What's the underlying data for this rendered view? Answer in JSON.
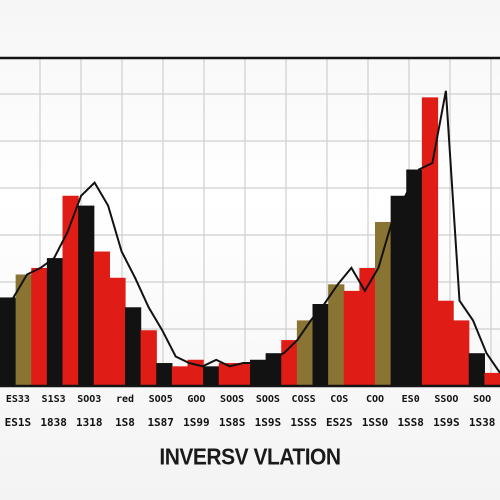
{
  "colors": {
    "red": "#e01c16",
    "black": "#121212",
    "olive": "#8a7433",
    "grid": "#cfcfcf",
    "frame": "#141414"
  },
  "chart_data": {
    "type": "bar",
    "title": "INVERSV VLATION",
    "xlabel": "",
    "ylabel": "",
    "ylim": [
      0,
      100
    ],
    "grid": true,
    "legend": "none",
    "tick_labels_row1": [
      "ES33",
      "S1S3",
      "SOO3",
      "red",
      "SOO5",
      "GOO",
      "SOOS",
      "SOOS",
      "COSS",
      "COS",
      "COO",
      "ES0",
      "SSOO",
      "SOO"
    ],
    "tick_labels_row2": [
      "ES1S",
      "1838",
      "1318",
      "1S8",
      "1S87",
      "1S99",
      "1S8S",
      "1S9S",
      "1SSS",
      "ES2S",
      "1SS0",
      "1SS8",
      "1S9S",
      "1S38"
    ],
    "bars": [
      {
        "color": "black",
        "value": 27
      },
      {
        "color": "olive",
        "value": 34
      },
      {
        "color": "red",
        "value": 36
      },
      {
        "color": "black",
        "value": 39
      },
      {
        "color": "red",
        "value": 58
      },
      {
        "color": "black",
        "value": 55
      },
      {
        "color": "red",
        "value": 41
      },
      {
        "color": "red",
        "value": 33
      },
      {
        "color": "black",
        "value": 24
      },
      {
        "color": "red",
        "value": 17
      },
      {
        "color": "black",
        "value": 7
      },
      {
        "color": "red",
        "value": 6
      },
      {
        "color": "red",
        "value": 8
      },
      {
        "color": "black",
        "value": 6
      },
      {
        "color": "red",
        "value": 7
      },
      {
        "color": "red",
        "value": 7
      },
      {
        "color": "black",
        "value": 8
      },
      {
        "color": "black",
        "value": 10
      },
      {
        "color": "red",
        "value": 14
      },
      {
        "color": "olive",
        "value": 20
      },
      {
        "color": "black",
        "value": 25
      },
      {
        "color": "olive",
        "value": 31
      },
      {
        "color": "red",
        "value": 29
      },
      {
        "color": "red",
        "value": 36
      },
      {
        "color": "olive",
        "value": 50
      },
      {
        "color": "black",
        "value": 58
      },
      {
        "color": "black",
        "value": 66
      },
      {
        "color": "red",
        "value": 88
      },
      {
        "color": "red",
        "value": 26
      },
      {
        "color": "red",
        "value": 20
      },
      {
        "color": "black",
        "value": 10
      },
      {
        "color": "red",
        "value": 4
      }
    ],
    "outline": [
      19,
      27,
      34,
      36,
      39,
      47,
      58,
      62,
      55,
      41,
      33,
      24,
      17,
      9,
      7,
      6,
      8,
      6,
      7,
      7,
      8,
      10,
      14,
      20,
      25,
      31,
      36,
      29,
      36,
      50,
      58,
      66,
      68,
      90,
      26,
      20,
      10,
      4
    ]
  }
}
